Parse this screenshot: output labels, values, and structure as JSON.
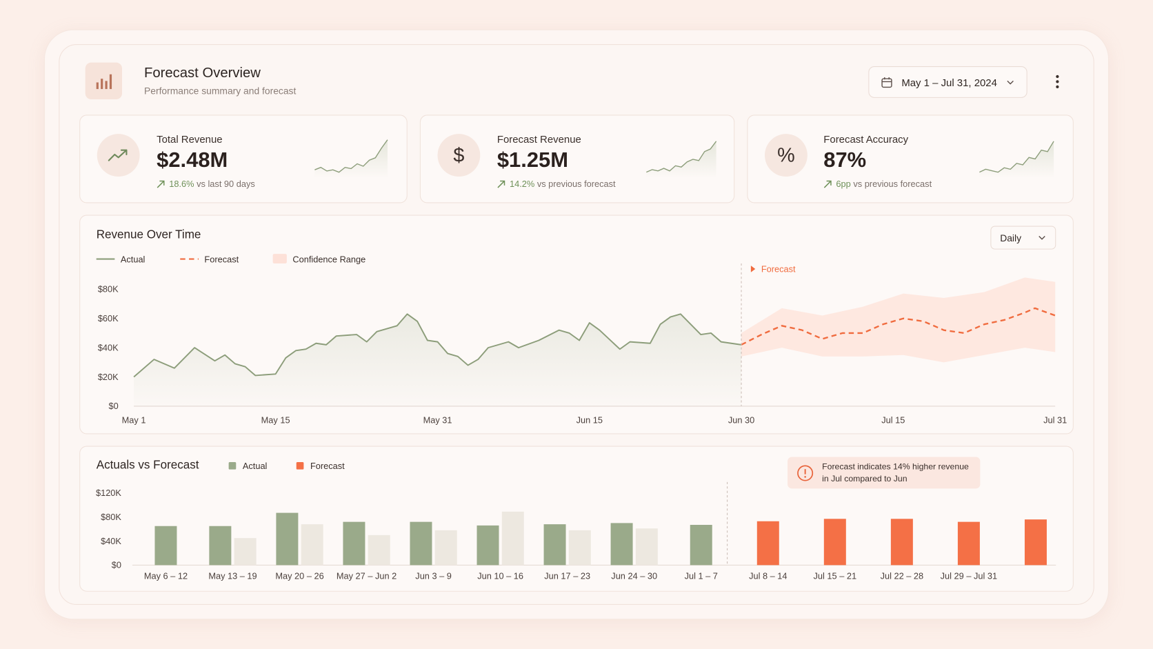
{
  "header": {
    "title": "Forecast Overview",
    "subtitle": "Performance summary and forecast",
    "date_range": "May 1 – Jul 31, 2024"
  },
  "kpis": [
    {
      "label": "Total Revenue",
      "value": "$2.48M",
      "change": "18.6%",
      "change_text": "vs last 90 days",
      "sparkline": [
        10,
        12,
        9,
        10,
        8,
        12,
        11,
        15,
        13,
        18,
        20,
        28,
        35
      ]
    },
    {
      "label": "Forecast Revenue",
      "icon": "$",
      "value": "$1.25M",
      "change": "14.2%",
      "change_text": "vs previous forecast",
      "sparkline": [
        8,
        10,
        9,
        11,
        9,
        13,
        12,
        16,
        18,
        17,
        24,
        26,
        32
      ]
    },
    {
      "label": "Forecast Accuracy",
      "icon": "%",
      "value": "87%",
      "change": "6pp",
      "change_text": "vs previous forecast",
      "sparkline": [
        9,
        11,
        10,
        9,
        12,
        11,
        15,
        14,
        19,
        18,
        24,
        23,
        30
      ]
    }
  ],
  "chart_data": [
    {
      "type": "line",
      "title": "Revenue Over Time",
      "control": "Daily",
      "annotation": "Forecast",
      "forecast_start": "Jun 30",
      "grid": false,
      "xlim": [
        "May 1",
        "Jul 31"
      ],
      "xticks": [
        "May 1",
        "May 15",
        "May 31",
        "Jun 15",
        "Jun 30",
        "Jul 15",
        "Jul 31"
      ],
      "ylim": [
        0,
        80000
      ],
      "yticks": [
        {
          "value": 0,
          "label": "$0"
        },
        {
          "value": 20000,
          "label": "$20K"
        },
        {
          "value": 40000,
          "label": "$40K"
        },
        {
          "value": 60000,
          "label": "$60K"
        },
        {
          "value": 80000,
          "label": "$80K"
        }
      ],
      "series": [
        {
          "name": "Actual",
          "color": "#8c9d7a",
          "area": true,
          "x": [
            "May 1",
            "May 3",
            "May 5",
            "May 7",
            "May 9",
            "May 10",
            "May 11",
            "May 12",
            "May 13",
            "May 15",
            "May 16",
            "May 17",
            "May 18",
            "May 19",
            "May 20",
            "May 21",
            "May 23",
            "May 24",
            "May 25",
            "May 27",
            "May 28",
            "May 29",
            "May 30",
            "May 31",
            "Jun 1",
            "Jun 2",
            "Jun 3",
            "Jun 4",
            "Jun 5",
            "Jun 7",
            "Jun 8",
            "Jun 10",
            "Jun 12",
            "Jun 13",
            "Jun 14",
            "Jun 15",
            "Jun 16",
            "Jun 18",
            "Jun 19",
            "Jun 21",
            "Jun 22",
            "Jun 23",
            "Jun 24",
            "Jun 26",
            "Jun 27",
            "Jun 28",
            "Jun 30"
          ],
          "values": [
            20000,
            32000,
            26000,
            40000,
            31000,
            35000,
            29000,
            27000,
            21000,
            22000,
            33000,
            38000,
            39000,
            43000,
            42000,
            48000,
            49000,
            44000,
            51000,
            55000,
            63000,
            58000,
            45000,
            44000,
            36000,
            34000,
            28000,
            32000,
            40000,
            44000,
            40000,
            45000,
            52000,
            50000,
            45000,
            57000,
            52000,
            39000,
            44000,
            43000,
            56000,
            61000,
            63000,
            49000,
            50000,
            44000,
            42000
          ]
        },
        {
          "name": "Forecast",
          "color": "#f06b3e",
          "dash": true,
          "x": [
            "Jun 30",
            "Jul 2",
            "Jul 4",
            "Jul 6",
            "Jul 8",
            "Jul 10",
            "Jul 12",
            "Jul 14",
            "Jul 16",
            "Jul 18",
            "Jul 20",
            "Jul 22",
            "Jul 24",
            "Jul 26",
            "Jul 28",
            "Jul 29",
            "Jul 31"
          ],
          "values": [
            42000,
            49000,
            55000,
            52000,
            46000,
            50000,
            50000,
            56000,
            60000,
            58000,
            52000,
            50000,
            56000,
            59000,
            64000,
            67000,
            62000
          ]
        },
        {
          "name": "Confidence Range",
          "color": "#fde1d8",
          "x": [
            "Jun 30",
            "Jul 4",
            "Jul 8",
            "Jul 12",
            "Jul 16",
            "Jul 20",
            "Jul 24",
            "Jul 28",
            "Jul 31"
          ],
          "upper": [
            50000,
            67000,
            62000,
            68000,
            77000,
            74000,
            78000,
            88000,
            85000
          ],
          "lower": [
            34000,
            40000,
            34000,
            34000,
            35000,
            30000,
            35000,
            40000,
            37000
          ]
        }
      ]
    },
    {
      "type": "bar",
      "title": "Actuals vs Forecast",
      "callout": "Forecast indicates 14% higher revenue in Jul compared to Jun",
      "grid": false,
      "categories": [
        "May 6 – 12",
        "May 13 – 19",
        "May 20 – 26",
        "May 27 – Jun 2",
        "Jun 3 – 9",
        "Jun 10 – 16",
        "Jun 17 – 23",
        "Jun 24 – 30",
        "Jul 1 – 7",
        "Jul 8 – 14",
        "Jul 15 – 21",
        "Jul 22 – 28",
        "Jul 29 – Jul 31",
        null
      ],
      "ylim": [
        0,
        120000
      ],
      "yticks": [
        {
          "value": 0,
          "label": "$0"
        },
        {
          "value": 40000,
          "label": "$40K"
        },
        {
          "value": 80000,
          "label": "$80K"
        },
        {
          "value": 120000,
          "label": "$120K"
        }
      ],
      "series": [
        {
          "name": "Actual",
          "color": "#9aaa8a",
          "values": [
            65000,
            65000,
            87000,
            72000,
            72000,
            66000,
            68000,
            70000,
            67000,
            null,
            null,
            null,
            null,
            null
          ]
        },
        {
          "name": "Forecast",
          "color": "#f47046",
          "past_color": "#ede8e0",
          "values": [
            null,
            45000,
            68000,
            50000,
            58000,
            89000,
            58000,
            61000,
            null,
            73000,
            77000,
            77000,
            72000,
            76000
          ]
        }
      ]
    }
  ]
}
